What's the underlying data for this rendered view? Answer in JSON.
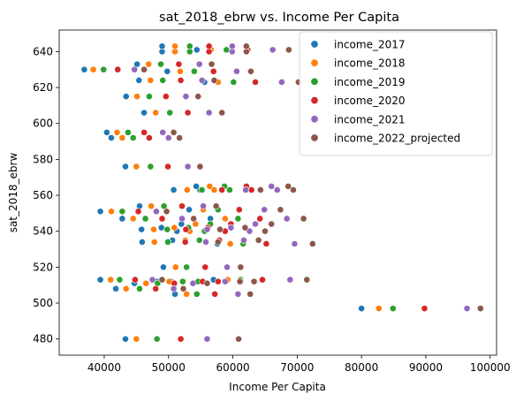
{
  "chart_data": {
    "type": "scatter",
    "title": "sat_2018_ebrw vs. Income Per Capita",
    "xlabel": "Income Per Capita",
    "ylabel": "sat_2018_ebrw",
    "xlim": [
      33000,
      101000
    ],
    "ylim": [
      471,
      652
    ],
    "xticks": [
      40000,
      50000,
      60000,
      70000,
      80000,
      90000,
      100000
    ],
    "yticks": [
      480,
      500,
      520,
      540,
      560,
      580,
      600,
      620,
      640
    ],
    "legend_position": "top-right",
    "y": [
      480,
      497,
      505,
      508,
      511,
      512,
      512,
      513,
      513,
      520,
      533,
      534,
      535,
      540,
      541,
      542,
      544,
      547,
      547,
      551,
      552,
      554,
      563,
      563,
      565,
      576,
      592,
      592,
      595,
      606,
      615,
      623,
      624,
      629,
      630,
      633,
      640,
      641,
      643
    ],
    "series": [
      {
        "name": "income_2017",
        "color": "#1f77b4",
        "x": [
          43300,
          80000,
          51000,
          41800,
          44700,
          50400,
          48200,
          39400,
          57000,
          49200,
          57600,
          45900,
          50600,
          51300,
          45800,
          48900,
          52000,
          42800,
          56500,
          39400,
          53200,
          45500,
          50800,
          54900,
          54300,
          43300,
          41100,
          41100,
          40400,
          46200,
          43400,
          55600,
          45400,
          49800,
          36900,
          45100,
          49000,
          54400,
          49000
        ]
      },
      {
        "name": "income_2018",
        "color": "#ff7f0e",
        "x": [
          45000,
          82700,
          52800,
          43400,
          46500,
          52300,
          50100,
          41000,
          59200,
          51100,
          59600,
          47800,
          52600,
          53300,
          47700,
          50900,
          54200,
          44500,
          58800,
          41100,
          55400,
          47300,
          52900,
          57100,
          56400,
          45000,
          42800,
          42800,
          42000,
          48000,
          45100,
          57700,
          47200,
          51800,
          38300,
          46900,
          51000,
          56600,
          51000
        ]
      },
      {
        "name": "income_2019",
        "color": "#2ca02c",
        "x": [
          48200,
          84900,
          54400,
          45500,
          48300,
          54600,
          52200,
          42400,
          61200,
          52800,
          61600,
          49900,
          54800,
          55600,
          49800,
          53100,
          56500,
          46400,
          60800,
          42800,
          57700,
          49300,
          55200,
          59500,
          58700,
          47200,
          44500,
          44500,
          43700,
          50200,
          47000,
          60100,
          49100,
          54000,
          39900,
          48800,
          53300,
          59000,
          53300
        ]
      },
      {
        "name": "income_2020",
        "color": "#d62728",
        "x": [
          51900,
          89800,
          57200,
          48000,
          50900,
          57700,
          55300,
          44800,
          64600,
          55700,
          65200,
          52600,
          57900,
          58800,
          52700,
          56100,
          59700,
          49000,
          64200,
          45300,
          61000,
          52100,
          58300,
          62900,
          62100,
          49900,
          47000,
          47000,
          46200,
          53000,
          49600,
          63500,
          51900,
          57000,
          42100,
          51600,
          56300,
          62300,
          56300
        ]
      },
      {
        "name": "income_2021",
        "color": "#9467bd",
        "x": [
          56000,
          96400,
          60800,
          50800,
          53800,
          61200,
          58800,
          47500,
          68900,
          59100,
          69600,
          55800,
          61700,
          62600,
          56000,
          59700,
          63500,
          52100,
          68400,
          48100,
          64900,
          55400,
          62000,
          66900,
          66000,
          53000,
          50000,
          50000,
          49100,
          56300,
          52700,
          67600,
          55200,
          60600,
          44700,
          54800,
          59900,
          66200,
          59900
        ]
      },
      {
        "name": "income_2022_projected",
        "color": "#8c564b",
        "x": [
          60900,
          98500,
          62700,
          52300,
          56000,
          63300,
          61100,
          49000,
          71500,
          61200,
          72400,
          57700,
          64000,
          65000,
          58000,
          61900,
          66000,
          53900,
          71000,
          49700,
          67400,
          57400,
          64300,
          69400,
          68600,
          54900,
          51700,
          51700,
          50800,
          58300,
          54600,
          70200,
          57100,
          62800,
          46200,
          56700,
          62100,
          68700,
          62100
        ]
      }
    ]
  }
}
